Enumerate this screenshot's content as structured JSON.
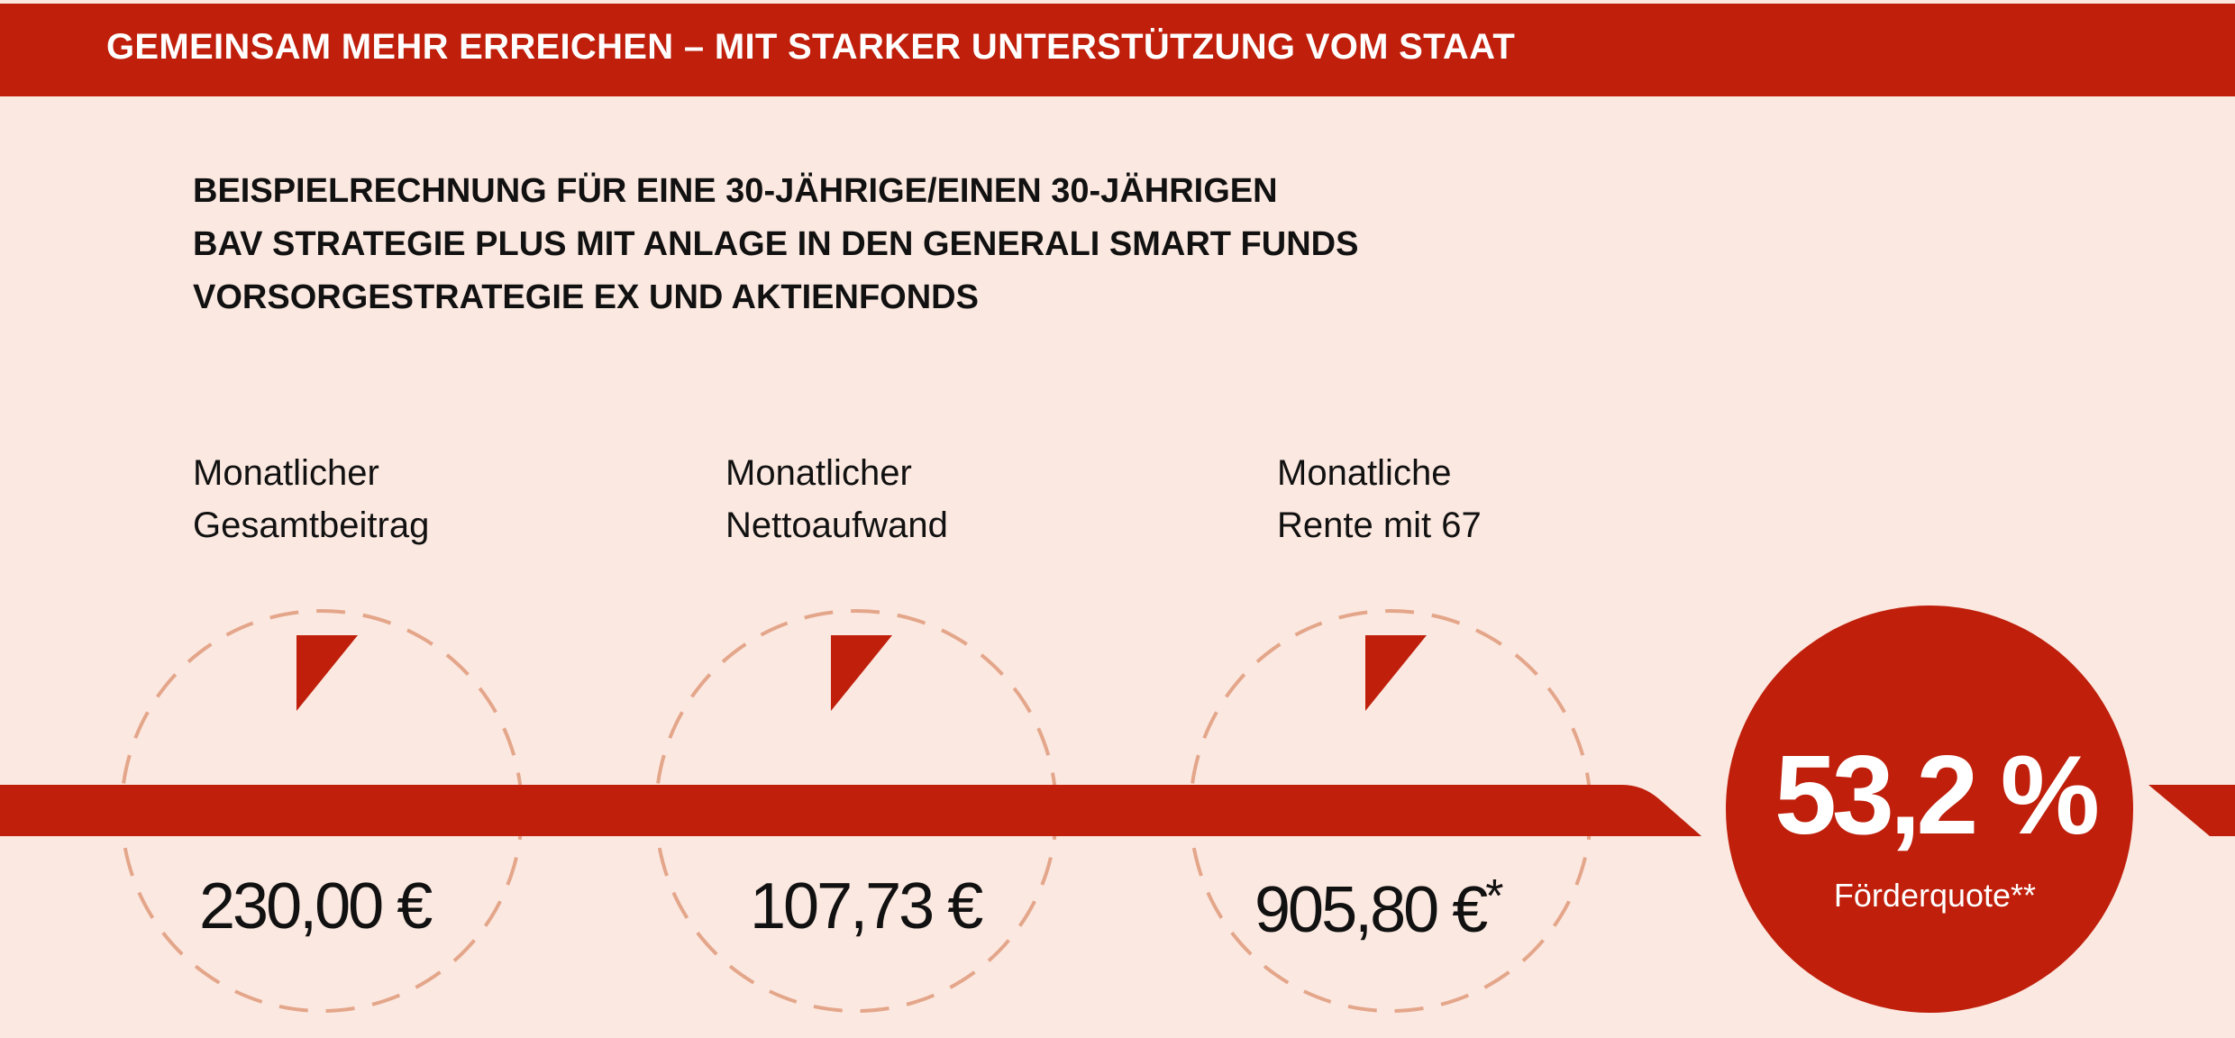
{
  "header": {
    "title": "GEMEINSAM MEHR ERREICHEN – MIT STARKER UNTERSTÜTZUNG VOM STAAT"
  },
  "subtitle": {
    "lines": [
      "BEISPIELRECHNUNG FÜR EINE 30-JÄHRIGE/EINEN 30-JÄHRIGEN",
      "BAV STRATEGIE PLUS MIT ANLAGE IN DEN GENERALI SMART FUNDS",
      "VORSORGESTRATEGIE EX UND AKTIENFONDS"
    ]
  },
  "metrics": [
    {
      "label_line1": "Monatlicher",
      "label_line2": "Gesamtbeitrag",
      "value": "230,00 €",
      "mark": ""
    },
    {
      "label_line1": "Monatlicher",
      "label_line2": "Nettoaufwand",
      "value": "107,73 €",
      "mark": ""
    },
    {
      "label_line1": "Monatliche",
      "label_line2": "Rente mit 67",
      "value": "905,80 €",
      "mark": "*"
    }
  ],
  "badge": {
    "value": "53,2 %",
    "label": "Förderquote**"
  },
  "colors": {
    "accent": "#bf1f0b",
    "background": "#fbe8e0",
    "dashed_circle": "#e4a68a",
    "text": "#111111"
  }
}
